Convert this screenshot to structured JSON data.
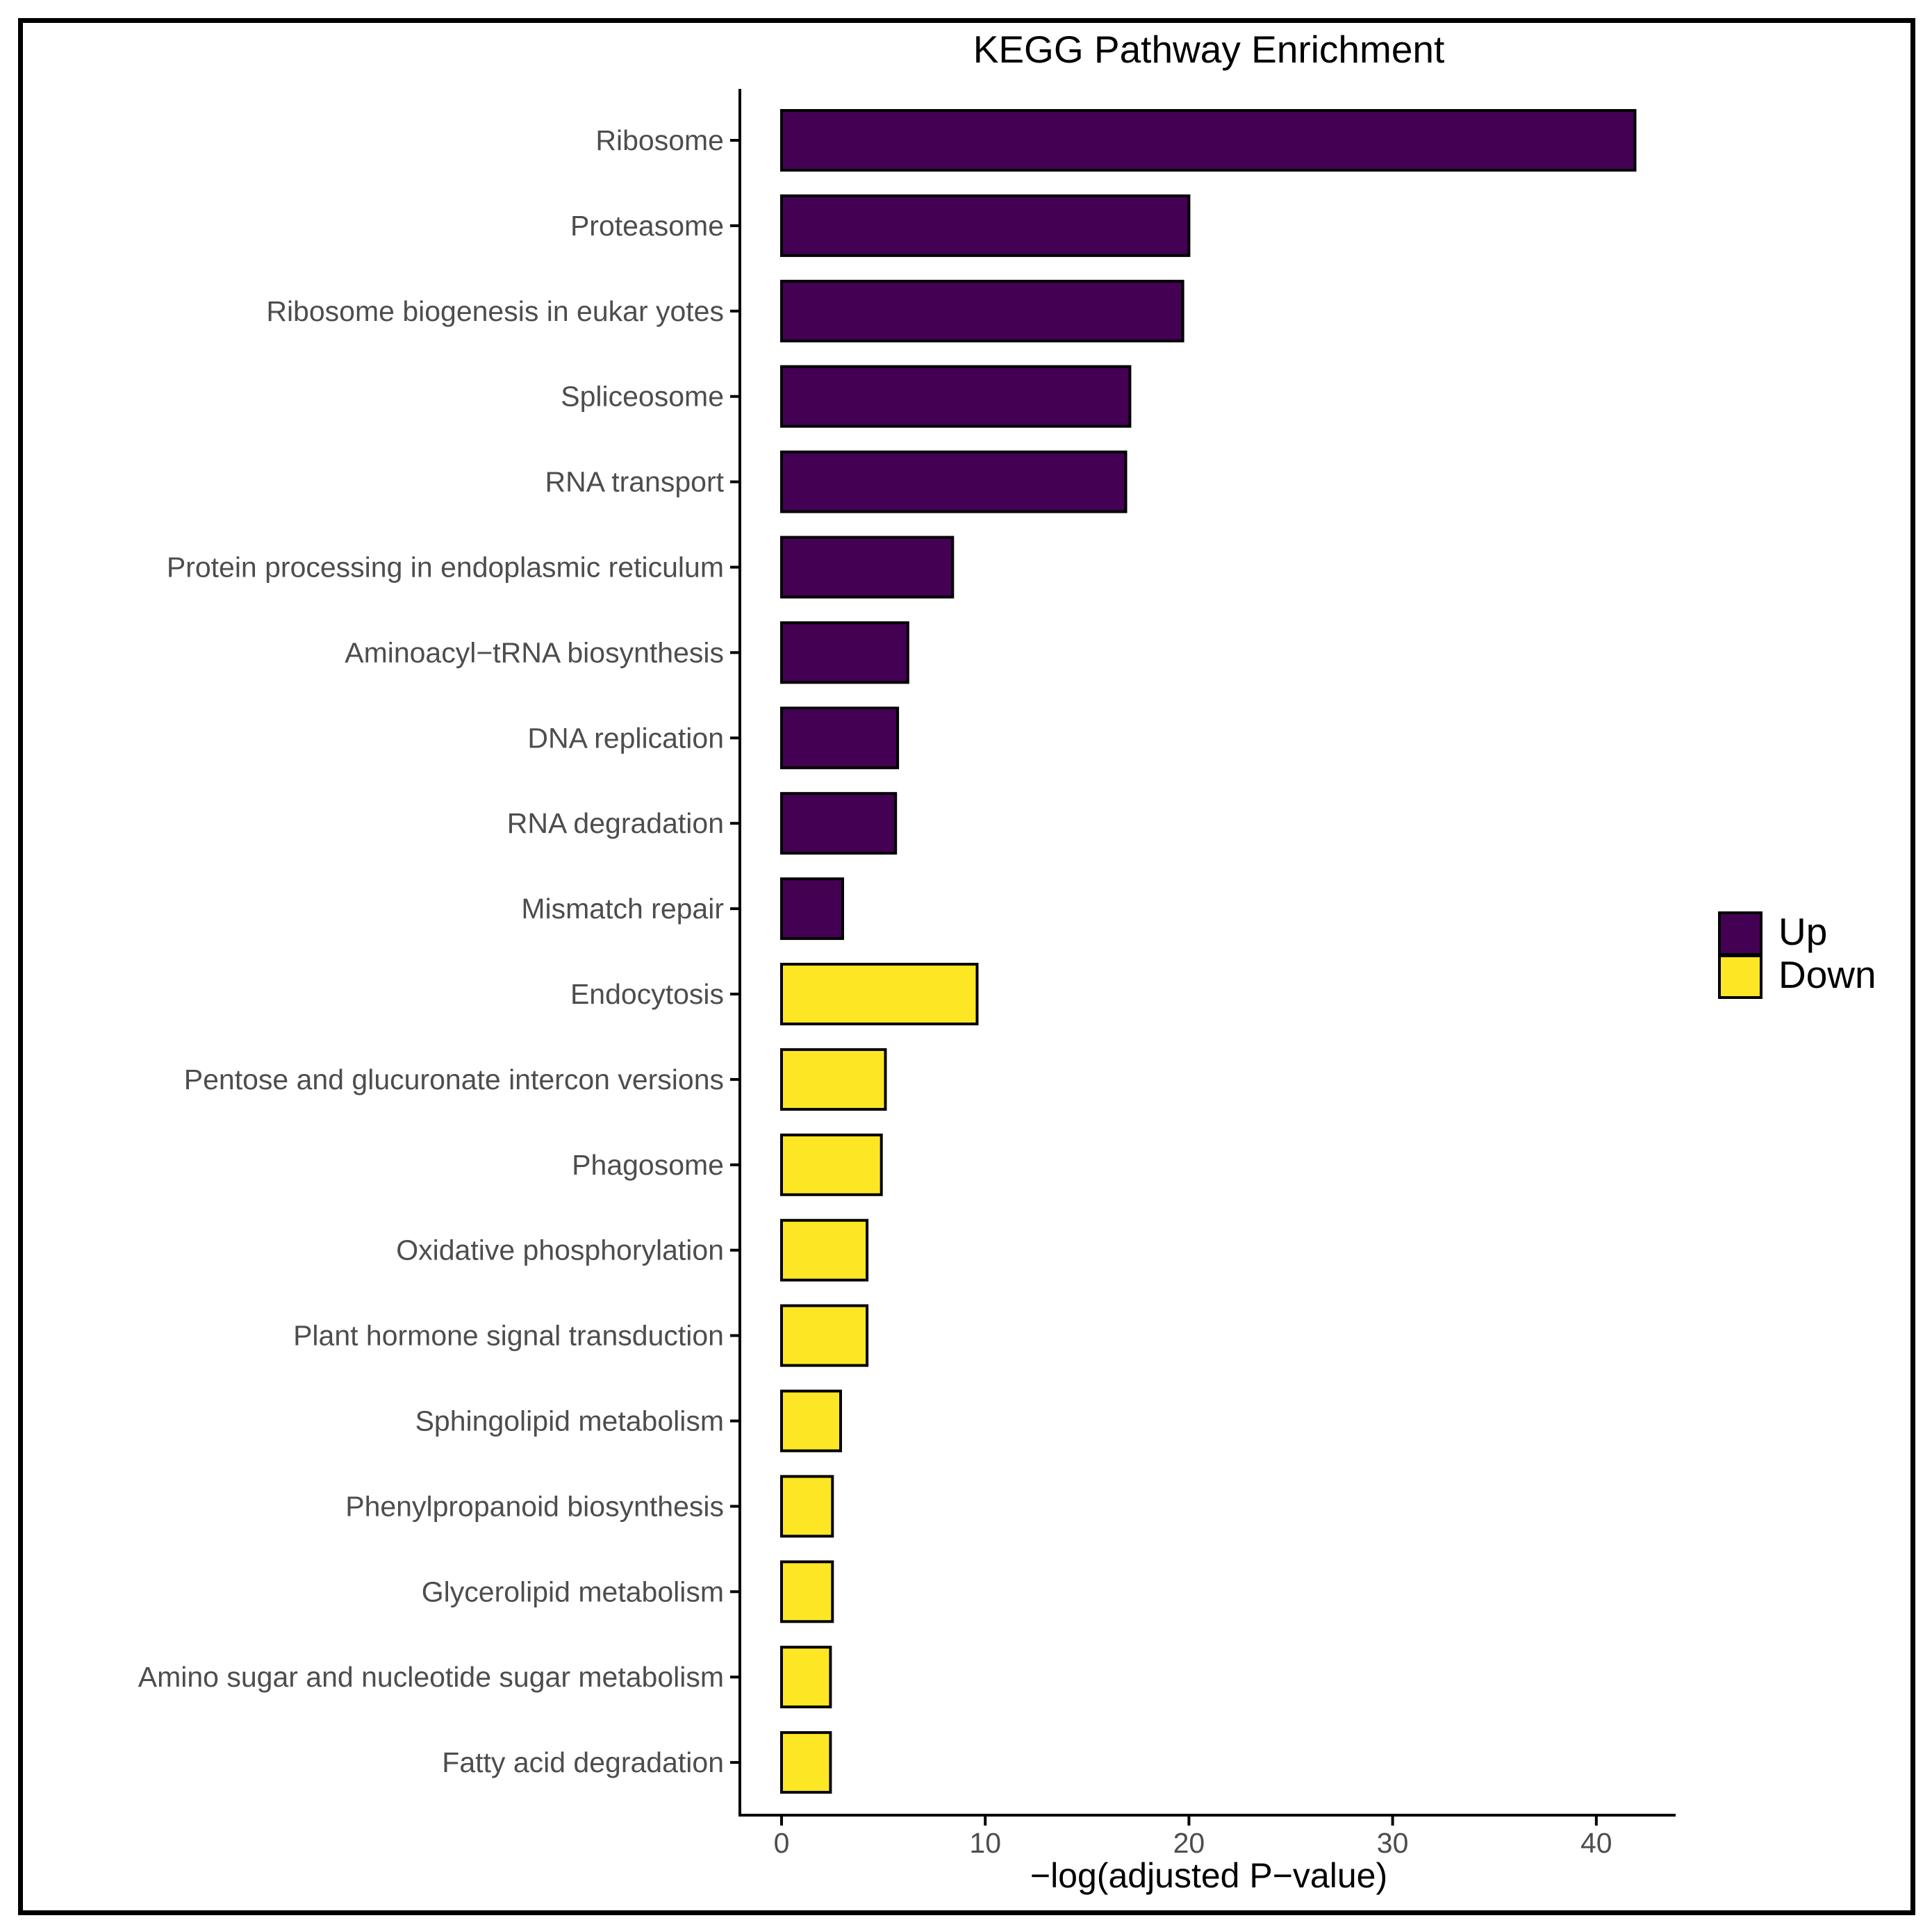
{
  "chart_data": {
    "type": "bar",
    "orientation": "horizontal",
    "title": "KEGG Pathway Enrichment",
    "xlabel": "−log(adjusted P−value)",
    "ylabel": "",
    "xlim": [
      0,
      44
    ],
    "x_ticks": [
      0,
      10,
      20,
      30,
      40
    ],
    "grid": false,
    "legend_position": "right",
    "colors": {
      "Up": "#440154",
      "Down": "#FDE725",
      "outline": "#000000"
    },
    "legend": [
      {
        "label": "Up",
        "color": "#440154"
      },
      {
        "label": "Down",
        "color": "#FDE725"
      }
    ],
    "bars": [
      {
        "label": "Ribosome",
        "value": 41.9,
        "group": "Up"
      },
      {
        "label": "Proteasome",
        "value": 20.0,
        "group": "Up"
      },
      {
        "label": "Ribosome biogenesis in eukar yotes",
        "value": 19.7,
        "group": "Up"
      },
      {
        "label": "Spliceosome",
        "value": 17.1,
        "group": "Up"
      },
      {
        "label": "RNA transport",
        "value": 16.9,
        "group": "Up"
      },
      {
        "label": "Protein processing in endoplasmic reticulum",
        "value": 8.4,
        "group": "Up"
      },
      {
        "label": "Aminoacyl−tRNA biosynthesis",
        "value": 6.2,
        "group": "Up"
      },
      {
        "label": "DNA replication",
        "value": 5.7,
        "group": "Up"
      },
      {
        "label": "RNA degradation",
        "value": 5.6,
        "group": "Up"
      },
      {
        "label": "Mismatch repair",
        "value": 3.0,
        "group": "Up"
      },
      {
        "label": "Endocytosis",
        "value": 9.6,
        "group": "Down"
      },
      {
        "label": "Pentose and glucuronate intercon versions",
        "value": 5.1,
        "group": "Down"
      },
      {
        "label": "Phagosome",
        "value": 4.9,
        "group": "Down"
      },
      {
        "label": "Oxidative phosphorylation",
        "value": 4.2,
        "group": "Down"
      },
      {
        "label": "Plant hormone signal transduction",
        "value": 4.2,
        "group": "Down"
      },
      {
        "label": "Sphingolipid metabolism",
        "value": 2.9,
        "group": "Down"
      },
      {
        "label": "Phenylpropanoid biosynthesis",
        "value": 2.5,
        "group": "Down"
      },
      {
        "label": "Glycerolipid metabolism",
        "value": 2.5,
        "group": "Down"
      },
      {
        "label": "Amino sugar and nucleotide sugar metabolism",
        "value": 2.4,
        "group": "Down"
      },
      {
        "label": "Fatty acid degradation",
        "value": 2.4,
        "group": "Down"
      }
    ]
  }
}
